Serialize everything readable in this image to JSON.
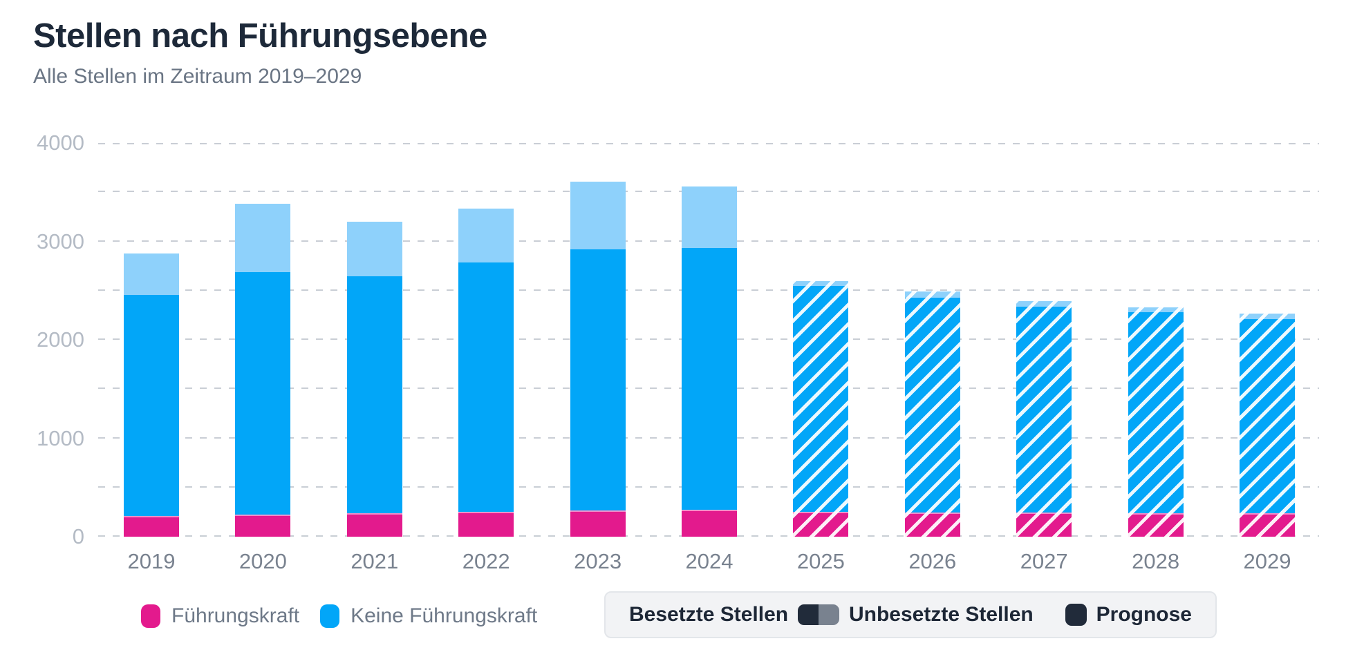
{
  "header": {
    "title": "Stellen nach Führungsebene",
    "subtitle": "Alle Stellen im Zeitraum 2019–2029"
  },
  "legend": {
    "leader_label": "Führungskraft",
    "staff_label": "Keine Führungskraft",
    "occupied_label": "Besetzte Stellen",
    "vacant_label": "Unbesetzte Stellen",
    "forecast_label": "Prognose"
  },
  "colors": {
    "leader_pink": "#e31a8d",
    "leader_top_border": "#f08fca",
    "staff_blue": "#02a6f8",
    "vacant_light_blue": "#8ed1fb",
    "dark_navy_swatch": "#212b3a",
    "gray_swatch": "#79828f",
    "hatch_stripe": "#ffffff",
    "gridline": "#c9ced5",
    "y_tick_text": "#b4bbc5",
    "x_tick_text": "#79828f",
    "title_text": "#1d2939",
    "subtitle_text": "#6a7584",
    "legend_text": "#6e7988",
    "legend_box_bg": "#f2f3f5",
    "legend_box_border": "#e3e6ea",
    "legend_box_text": "#1d2736"
  },
  "chart_data": {
    "type": "bar",
    "stacked": true,
    "title": "Stellen nach Führungsebene",
    "subtitle": "Alle Stellen im Zeitraum 2019–2029",
    "categories": [
      "2019",
      "2020",
      "2021",
      "2022",
      "2023",
      "2024",
      "2025",
      "2026",
      "2027",
      "2028",
      "2029"
    ],
    "series": [
      {
        "name": "Führungskraft",
        "role": "leader",
        "color": "#e31a8d",
        "values": [
          210,
          225,
          240,
          255,
          265,
          275,
          250,
          245,
          245,
          240,
          240
        ]
      },
      {
        "name": "Keine Führungskraft",
        "role": "staff",
        "color": "#02a6f8",
        "values": [
          2245,
          2460,
          2405,
          2530,
          2655,
          2660,
          2300,
          2185,
          2095,
          2040,
          1970
        ]
      },
      {
        "name": "Unbesetzte Stellen",
        "role": "vacant",
        "color": "#8ed1fb",
        "values": [
          420,
          695,
          555,
          545,
          690,
          625,
          45,
          60,
          55,
          50,
          55
        ]
      }
    ],
    "totals": [
      2875,
      3380,
      3200,
      3330,
      3610,
      3560,
      2595,
      2490,
      2395,
      2330,
      2265
    ],
    "forecast_from": "2025",
    "forecast_style": "white-diagonal-hatch",
    "xlabel": "",
    "ylabel": "",
    "ylim": [
      0,
      4000
    ],
    "yticks": [
      0,
      1000,
      2000,
      3000,
      4000
    ],
    "grid_step": 500,
    "grid": "dashed",
    "legend_position": "bottom"
  }
}
